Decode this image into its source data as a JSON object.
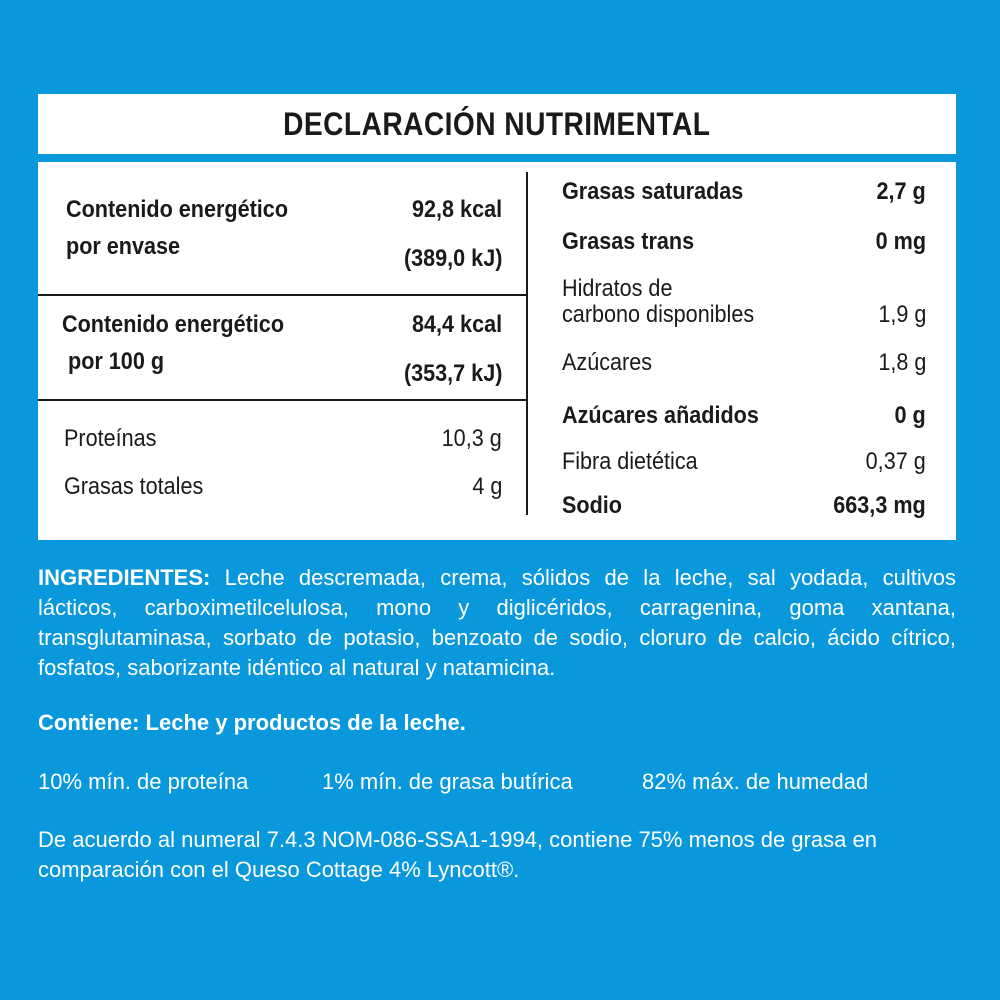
{
  "title": "DECLARACIÓN NUTRIMENTAL",
  "left": {
    "energia_envase": {
      "label_1": "Contenido energético",
      "label_2": "por envase",
      "kcal": "92,8 kcal",
      "kj": "(389,0 kJ)"
    },
    "energia_100g": {
      "label_1": "Contenido energético",
      "label_2": "por 100 g",
      "kcal": "84,4 kcal",
      "kj": "(353,7 kJ)"
    },
    "proteinas": {
      "label": "Proteínas",
      "value": "10,3 g"
    },
    "grasas_totales": {
      "label": "Grasas totales",
      "value": "4 g"
    }
  },
  "right": {
    "grasas_saturadas": {
      "label": "Grasas saturadas",
      "value": "2,7 g"
    },
    "grasas_trans": {
      "label": "Grasas trans",
      "value": "0 mg"
    },
    "hidratos": {
      "label_1": "Hidratos de",
      "label_2": "carbono disponibles",
      "value": "1,9 g"
    },
    "azucares": {
      "label": "Azúcares",
      "value": "1,8 g"
    },
    "azucares_anadidos": {
      "label": "Azúcares añadidos",
      "value": "0 g"
    },
    "fibra": {
      "label": "Fibra dietética",
      "value": "0,37 g"
    },
    "sodio": {
      "label": "Sodio",
      "value": "663,3 mg"
    }
  },
  "ingredients": {
    "label": "INGREDIENTES:",
    "text": " Leche descremada, crema, sólidos de la leche, sal yodada, cultivos lácticos, carboximetilcelulosa, mono y diglicéridos, carragenina, goma xantana, transglutaminasa, sorbato de potasio, benzoato de sodio, cloruro de calcio, ácido cítrico, fosfatos, saborizante idéntico al natural y natamicina."
  },
  "contiene": "Contiene: Leche y productos de la leche.",
  "specs": [
    "10% mín. de proteína",
    "1% mín. de grasa butírica",
    "82% máx. de humedad"
  ],
  "nota": {
    "line_1": "De acuerdo al numeral 7.4.3 NOM-086-SSA1-1994, contiene 75% menos de grasa en",
    "line_2": "comparación con el Queso Cottage 4% Lyncott®."
  },
  "colors": {
    "background": "#0a98dc",
    "panel": "#ffffff",
    "text": "#1a1a1a"
  }
}
